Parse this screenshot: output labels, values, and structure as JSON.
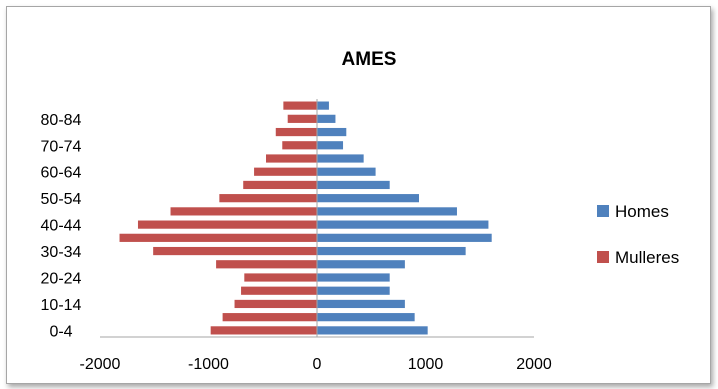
{
  "chart_data": {
    "type": "bar",
    "orientation": "horizontal",
    "title": "AMES",
    "categories": [
      "0-4",
      "5-9",
      "10-14",
      "15-19",
      "20-24",
      "25-29",
      "30-34",
      "35-39",
      "40-44",
      "45-49",
      "50-54",
      "55-59",
      "60-64",
      "65-69",
      "70-74",
      "75-79",
      "80-84",
      "85+"
    ],
    "y_tick_labels": [
      "0-4",
      "10-14",
      "20-24",
      "30-34",
      "40-44",
      "50-54",
      "60-64",
      "70-74",
      "80-84"
    ],
    "series": [
      {
        "name": "Homes",
        "color": "#4f81bd",
        "values": [
          1020,
          900,
          810,
          670,
          670,
          810,
          1370,
          1610,
          1580,
          1290,
          940,
          670,
          540,
          430,
          240,
          270,
          170,
          110
        ]
      },
      {
        "name": "Mulleres",
        "color": "#c0504d",
        "values": [
          -980,
          -870,
          -760,
          -700,
          -670,
          -930,
          -1510,
          -1820,
          -1650,
          -1350,
          -900,
          -680,
          -580,
          -470,
          -320,
          -380,
          -270,
          -310
        ]
      }
    ],
    "xlim": [
      -2000,
      2000
    ],
    "x_ticks": [
      -2000,
      -1000,
      0,
      1000,
      2000
    ],
    "grid": false,
    "legend_position": "right"
  }
}
